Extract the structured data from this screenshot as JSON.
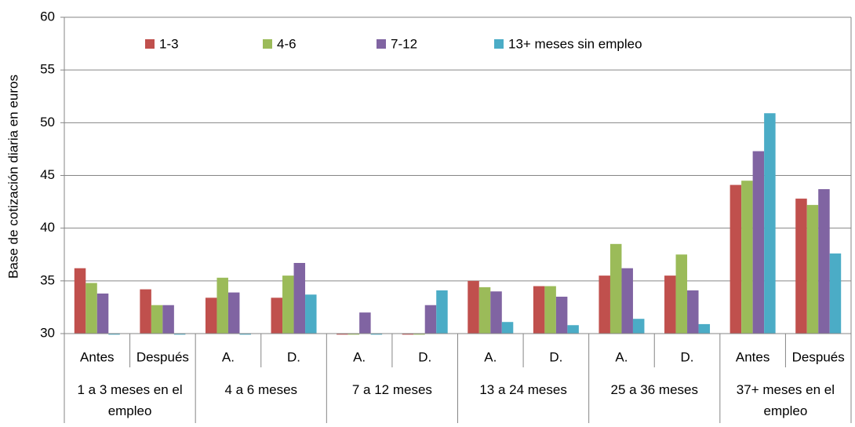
{
  "chart_data": {
    "type": "bar",
    "y_label": "Base de cotización diaria en euros",
    "categories": [
      "Antes",
      "Después",
      "A.",
      "D.",
      "A.",
      "D.",
      "A.",
      "D.",
      "A.",
      "D.",
      "Antes",
      "Después"
    ],
    "groups": [
      "1 a 3 meses en el empleo",
      "4 a 6 meses",
      "7 a 12 meses",
      "13 a 24 meses",
      "25 a 36 meses",
      "37+ meses en el empleo"
    ],
    "series": [
      {
        "name": "1-3",
        "color": "#c0504d",
        "values": [
          36.2,
          34.2,
          33.4,
          33.4,
          29.9,
          29.9,
          35.0,
          34.5,
          35.5,
          35.5,
          44.1,
          42.8
        ]
      },
      {
        "name": "4-6",
        "color": "#9bbb59",
        "values": [
          34.8,
          32.7,
          35.3,
          35.5,
          29.9,
          29.9,
          34.4,
          34.5,
          38.5,
          37.5,
          44.5,
          42.2
        ]
      },
      {
        "name": "7-12",
        "color": "#8064a2",
        "values": [
          33.8,
          32.7,
          33.9,
          36.7,
          32.0,
          32.7,
          34.0,
          33.5,
          36.2,
          34.1,
          47.3,
          43.7
        ]
      },
      {
        "name": "13+ meses sin empleo",
        "color": "#4bacc6",
        "values": [
          29.9,
          29.9,
          29.9,
          33.7,
          29.9,
          34.1,
          31.1,
          30.8,
          31.4,
          30.9,
          50.9,
          37.6
        ]
      }
    ],
    "ylim": [
      30,
      60
    ],
    "yticks": [
      30,
      35,
      40,
      45,
      50,
      55,
      60
    ],
    "grid": true,
    "legend": "top"
  }
}
